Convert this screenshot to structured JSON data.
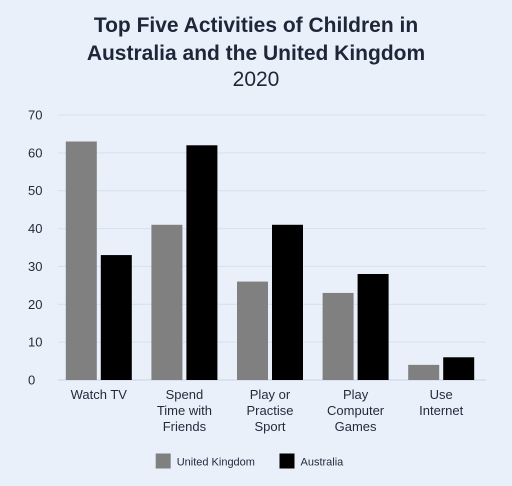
{
  "chart_data": {
    "type": "bar",
    "title": "Top Five Activities of Children in Australia and the United Kingdom",
    "subtitle": "2020",
    "categories": [
      [
        "Watch TV"
      ],
      [
        "Spend",
        "Time with",
        "Friends"
      ],
      [
        "Play or",
        "Practise",
        "Sport"
      ],
      [
        "Play",
        "Computer",
        "Games"
      ],
      [
        "Use",
        "Internet"
      ]
    ],
    "series": [
      {
        "name": "United Kingdom",
        "color": "#808080",
        "values": [
          63,
          41,
          26,
          23,
          4
        ]
      },
      {
        "name": "Australia",
        "color": "#000000",
        "values": [
          33,
          62,
          41,
          28,
          6
        ]
      }
    ],
    "ylim": [
      0,
      70
    ],
    "yticks": [
      0,
      10,
      20,
      30,
      40,
      50,
      60,
      70
    ],
    "grid": true,
    "legend_position": "bottom"
  }
}
